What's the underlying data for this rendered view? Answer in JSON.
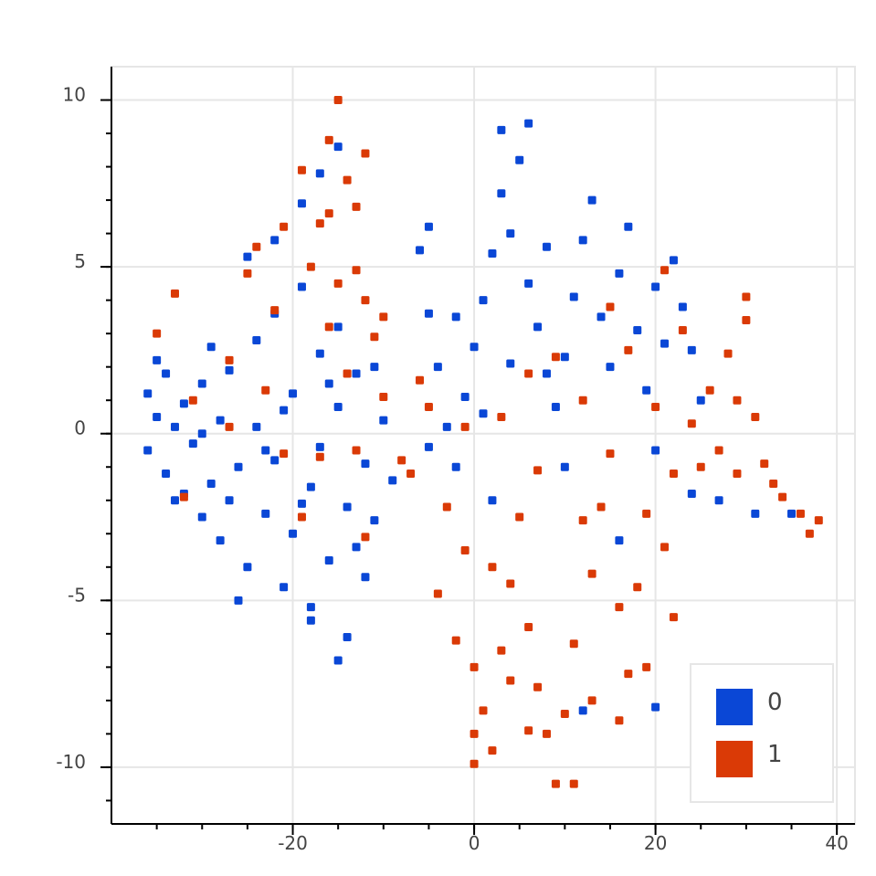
{
  "chart_data": {
    "type": "scatter",
    "title": "",
    "xlabel": "",
    "ylabel": "",
    "xlim": [
      -40,
      42
    ],
    "ylim": [
      -11.7,
      11
    ],
    "grid": true,
    "legend_position": "bottom-right",
    "x_ticks": [
      {
        "value": -20,
        "label": "-20"
      },
      {
        "value": 0,
        "label": "0"
      },
      {
        "value": 20,
        "label": "20"
      },
      {
        "value": 40,
        "label": "40"
      }
    ],
    "y_ticks": [
      {
        "value": 10,
        "label": "10"
      },
      {
        "value": 5,
        "label": "5"
      },
      {
        "value": 0,
        "label": "0"
      },
      {
        "value": -5,
        "label": "-5"
      },
      {
        "value": -10,
        "label": "-10"
      }
    ],
    "series": [
      {
        "name": "0",
        "color": "#0a47d6",
        "points": [
          [
            -36,
            1.2
          ],
          [
            -35,
            0.5
          ],
          [
            -36,
            -0.5
          ],
          [
            -34,
            1.8
          ],
          [
            -33,
            0.2
          ],
          [
            -34,
            -1.2
          ],
          [
            -32,
            0.9
          ],
          [
            -31,
            -0.3
          ],
          [
            -32,
            -1.8
          ],
          [
            -30,
            1.5
          ],
          [
            -30,
            -2.5
          ],
          [
            -29,
            2.6
          ],
          [
            -28,
            0.4
          ],
          [
            -28,
            -3.2
          ],
          [
            -27,
            1.9
          ],
          [
            -26,
            -1.0
          ],
          [
            -25,
            -4.0
          ],
          [
            -24,
            2.8
          ],
          [
            -24,
            0.2
          ],
          [
            -23,
            -2.4
          ],
          [
            -22,
            3.6
          ],
          [
            -22,
            -0.8
          ],
          [
            -21,
            -4.6
          ],
          [
            -20,
            1.2
          ],
          [
            -20,
            -3.0
          ],
          [
            -19,
            4.4
          ],
          [
            -18,
            -1.6
          ],
          [
            -18,
            -5.2
          ],
          [
            -17,
            2.4
          ],
          [
            -17,
            -0.4
          ],
          [
            -16,
            -3.8
          ],
          [
            -15,
            3.2
          ],
          [
            -15,
            0.8
          ],
          [
            -14,
            -2.2
          ],
          [
            -14,
            -6.1
          ],
          [
            -13,
            1.8
          ],
          [
            -12,
            -0.9
          ],
          [
            -12,
            -4.3
          ],
          [
            -11,
            2.0
          ],
          [
            -11,
            -2.6
          ],
          [
            -10,
            0.4
          ],
          [
            -9,
            -1.4
          ],
          [
            -25,
            5.3
          ],
          [
            -22,
            5.8
          ],
          [
            -19,
            6.9
          ],
          [
            -17,
            7.8
          ],
          [
            -15,
            8.6
          ],
          [
            -26,
            -5.0
          ],
          [
            -18,
            -5.6
          ],
          [
            -15,
            -6.8
          ],
          [
            -33,
            -2.0
          ],
          [
            -35,
            2.2
          ],
          [
            -29,
            -1.5
          ],
          [
            -27,
            -2.0
          ],
          [
            -21,
            0.7
          ],
          [
            -19,
            -2.1
          ],
          [
            -13,
            -3.4
          ],
          [
            -16,
            1.5
          ],
          [
            -23,
            -0.5
          ],
          [
            -30,
            0.0
          ],
          [
            -6,
            5.5
          ],
          [
            -5,
            3.6
          ],
          [
            -4,
            2.0
          ],
          [
            -3,
            0.2
          ],
          [
            -2,
            -1.0
          ],
          [
            -1,
            1.1
          ],
          [
            0,
            2.6
          ],
          [
            1,
            4.0
          ],
          [
            2,
            5.4
          ],
          [
            3,
            7.2
          ],
          [
            3,
            9.1
          ],
          [
            5,
            8.2
          ],
          [
            6,
            9.3
          ],
          [
            4,
            6.0
          ],
          [
            6,
            4.5
          ],
          [
            7,
            3.2
          ],
          [
            8,
            1.8
          ],
          [
            9,
            0.8
          ],
          [
            10,
            2.3
          ],
          [
            11,
            4.1
          ],
          [
            12,
            5.8
          ],
          [
            13,
            7.0
          ],
          [
            14,
            3.5
          ],
          [
            15,
            2.0
          ],
          [
            16,
            4.8
          ],
          [
            17,
            6.2
          ],
          [
            18,
            3.1
          ],
          [
            19,
            1.3
          ],
          [
            20,
            4.4
          ],
          [
            21,
            2.7
          ],
          [
            22,
            5.2
          ],
          [
            23,
            3.8
          ],
          [
            24,
            2.5
          ],
          [
            25,
            1.0
          ],
          [
            -5,
            -0.4
          ],
          [
            -2,
            3.5
          ],
          [
            1,
            0.6
          ],
          [
            4,
            2.1
          ],
          [
            8,
            5.6
          ],
          [
            2,
            -2.0
          ],
          [
            10,
            -1.0
          ],
          [
            20,
            -0.5
          ],
          [
            24,
            -1.8
          ],
          [
            27,
            -2.0
          ],
          [
            31,
            -2.4
          ],
          [
            35,
            -2.4
          ],
          [
            16,
            -3.2
          ],
          [
            12,
            -8.3
          ],
          [
            20,
            -8.2
          ],
          [
            -5,
            6.2
          ]
        ]
      },
      {
        "name": "1",
        "color": "#da3a06",
        "points": [
          [
            -15,
            10.0
          ],
          [
            -16,
            8.8
          ],
          [
            -14,
            7.6
          ],
          [
            -12,
            8.4
          ],
          [
            -19,
            7.9
          ],
          [
            -17,
            6.3
          ],
          [
            -13,
            6.8
          ],
          [
            -21,
            6.2
          ],
          [
            -24,
            5.6
          ],
          [
            -18,
            5.0
          ],
          [
            -15,
            4.5
          ],
          [
            -12,
            4.0
          ],
          [
            -25,
            4.8
          ],
          [
            -22,
            3.7
          ],
          [
            -16,
            3.2
          ],
          [
            -11,
            2.9
          ],
          [
            -33,
            4.2
          ],
          [
            -35,
            3.0
          ],
          [
            -27,
            2.2
          ],
          [
            -23,
            1.3
          ],
          [
            -14,
            1.8
          ],
          [
            -10,
            1.1
          ],
          [
            -31,
            1.0
          ],
          [
            -27,
            0.2
          ],
          [
            -21,
            -0.6
          ],
          [
            -13,
            -0.5
          ],
          [
            -8,
            -0.8
          ],
          [
            -19,
            -2.5
          ],
          [
            -12,
            -3.1
          ],
          [
            -32,
            -1.9
          ],
          [
            -3,
            -2.2
          ],
          [
            -1,
            -3.5
          ],
          [
            -4,
            -4.8
          ],
          [
            -2,
            -6.2
          ],
          [
            0,
            -7.0
          ],
          [
            1,
            -8.3
          ],
          [
            0,
            -9.0
          ],
          [
            0,
            -9.9
          ],
          [
            2,
            -9.5
          ],
          [
            3,
            -6.5
          ],
          [
            4,
            -4.5
          ],
          [
            5,
            -2.5
          ],
          [
            6,
            -5.8
          ],
          [
            7,
            -7.6
          ],
          [
            8,
            -9.0
          ],
          [
            9,
            -10.5
          ],
          [
            11,
            -10.5
          ],
          [
            10,
            -8.4
          ],
          [
            11,
            -6.3
          ],
          [
            13,
            -4.2
          ],
          [
            14,
            -2.2
          ],
          [
            15,
            -0.6
          ],
          [
            12,
            -2.6
          ],
          [
            16,
            -5.2
          ],
          [
            17,
            -7.2
          ],
          [
            18,
            -4.6
          ],
          [
            19,
            -2.4
          ],
          [
            20,
            0.8
          ],
          [
            21,
            -3.4
          ],
          [
            22,
            -5.5
          ],
          [
            19,
            -7.0
          ],
          [
            22,
            -1.2
          ],
          [
            24,
            0.3
          ],
          [
            26,
            1.3
          ],
          [
            27,
            -0.5
          ],
          [
            28,
            2.4
          ],
          [
            29,
            1.0
          ],
          [
            30,
            3.4
          ],
          [
            30,
            4.1
          ],
          [
            31,
            0.5
          ],
          [
            32,
            -0.9
          ],
          [
            33,
            -1.5
          ],
          [
            34,
            -1.9
          ],
          [
            36,
            -2.4
          ],
          [
            37,
            -3.0
          ],
          [
            38,
            -2.6
          ],
          [
            29,
            -1.2
          ],
          [
            25,
            -1.0
          ],
          [
            3,
            0.5
          ],
          [
            6,
            1.8
          ],
          [
            9,
            2.3
          ],
          [
            12,
            1.0
          ],
          [
            15,
            3.8
          ],
          [
            17,
            2.5
          ],
          [
            21,
            4.9
          ],
          [
            23,
            3.1
          ],
          [
            7,
            -1.1
          ],
          [
            2,
            -4.0
          ],
          [
            -5,
            0.8
          ],
          [
            -1,
            0.2
          ],
          [
            4,
            -7.4
          ],
          [
            13,
            -8.0
          ],
          [
            16,
            -8.6
          ],
          [
            6,
            -8.9
          ],
          [
            -7,
            -1.2
          ],
          [
            -6,
            1.6
          ],
          [
            -10,
            3.5
          ],
          [
            -17,
            -0.7
          ],
          [
            -16,
            6.6
          ],
          [
            -13,
            4.9
          ]
        ]
      }
    ]
  }
}
